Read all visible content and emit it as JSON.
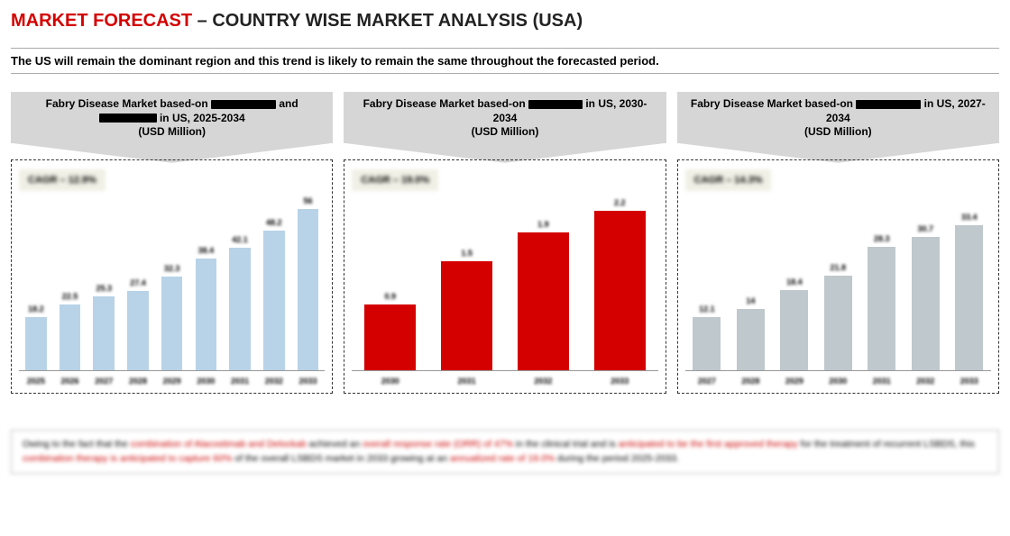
{
  "title": {
    "red": "MARKET FORECAST",
    "dash": "  –  ",
    "black": "COUNTRY WISE MARKET ANALYSIS (USA)"
  },
  "subtitle": "The US will remain the dominant region and this trend is likely to remain the same throughout the forecasted period.",
  "panels": [
    {
      "header_pre": "Fabry Disease Market based-on ",
      "redact1_w": 72,
      "header_mid": " and ",
      "redact2_w": 64,
      "header_post": " in US, 2025-2034",
      "header_line2": "(USD Million)",
      "cagr": "CAGR – 12.9%",
      "type": "bar",
      "bar_color": "#b8d3e8",
      "max": 60,
      "bars": [
        {
          "x": "2025",
          "v": 18.2
        },
        {
          "x": "2026",
          "v": 22.5
        },
        {
          "x": "2027",
          "v": 25.3
        },
        {
          "x": "2028",
          "v": 27.4
        },
        {
          "x": "2029",
          "v": 32.3
        },
        {
          "x": "2030",
          "v": 38.4
        },
        {
          "x": "2031",
          "v": 42.1
        },
        {
          "x": "2032",
          "v": 48.2
        },
        {
          "x": "2033",
          "v": 56.0
        }
      ]
    },
    {
      "header_pre": "Fabry Disease Market based-on ",
      "redact1_w": 60,
      "header_mid": "",
      "redact2_w": 0,
      "header_post": " in US, 2030-2034",
      "header_line2": "(USD Million)",
      "cagr": "CAGR – 19.0%",
      "type": "bar",
      "bar_color": "#d40000",
      "max": 2.4,
      "bars": [
        {
          "x": "2030",
          "v": 0.9
        },
        {
          "x": "2031",
          "v": 1.5
        },
        {
          "x": "2032",
          "v": 1.9
        },
        {
          "x": "2033",
          "v": 2.2
        }
      ]
    },
    {
      "header_pre": "Fabry Disease Market based-on ",
      "redact1_w": 72,
      "header_mid": "",
      "redact2_w": 0,
      "header_post": " in US, 2027-2034",
      "header_line2": "(USD Million)",
      "cagr": "CAGR – 14.3%",
      "type": "bar",
      "bar_color": "#bfc8cc",
      "max": 40,
      "bars": [
        {
          "x": "2027",
          "v": 12.1
        },
        {
          "x": "2028",
          "v": 14.0
        },
        {
          "x": "2029",
          "v": 18.4
        },
        {
          "x": "2030",
          "v": 21.8
        },
        {
          "x": "2031",
          "v": 28.3
        },
        {
          "x": "2032",
          "v": 30.7
        },
        {
          "x": "2033",
          "v": 33.4
        }
      ]
    }
  ],
  "footer": {
    "p1a": "Owing to the fact that the ",
    "p1b": "combination of Alacostimab and Delockab ",
    "p1c": "achieved an ",
    "p1d": "overall response rate (ORR) of 47%",
    "p1e": " in the clinical trial and is ",
    "p1f": "anticipated to be the first approved therapy",
    "p1g": " for the treatment of recurrent LSBDS, this ",
    "p1h": "combination therapy is anticipated to capture 60%",
    "p1i": " of the overall LSBDS market in 2033 growing at an ",
    "p1j": "annualized rate of 19.0%",
    "p1k": " during the period 2025-2033."
  }
}
